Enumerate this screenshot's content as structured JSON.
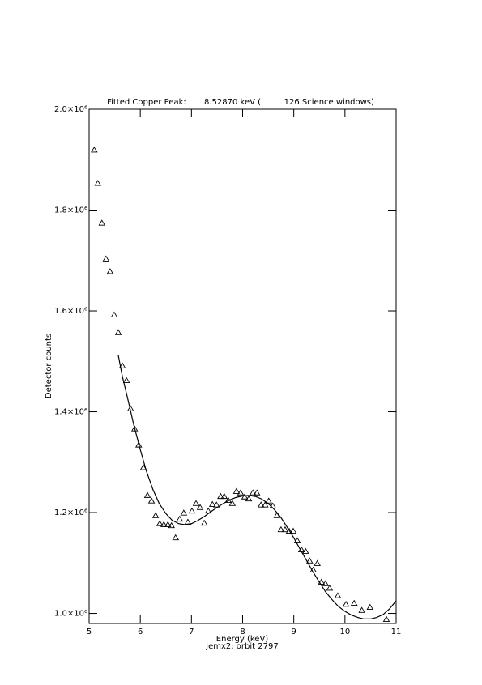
{
  "chart_data": {
    "type": "scatter",
    "title": "Fitted Copper Peak:       8.52870 keV (         126 Science windows)",
    "x_label": "Energy (keV)",
    "subtitle": "jemx2: orbit 2797",
    "y_label": "Detector counts",
    "xlim": [
      5,
      11
    ],
    "xticks": [
      5,
      6,
      7,
      8,
      9,
      10,
      11
    ],
    "ylim": [
      980000,
      2000000
    ],
    "yticks": [
      {
        "value": 1000000,
        "label": "1.0×10⁶"
      },
      {
        "value": 1200000,
        "label": "1.2×10⁶"
      },
      {
        "value": 1400000,
        "label": "1.4×10⁶"
      },
      {
        "value": 1600000,
        "label": "1.6×10⁶"
      },
      {
        "value": 1800000,
        "label": "1.8×10⁶"
      },
      {
        "value": 2000000,
        "label": "2.0×10⁶"
      }
    ],
    "series": [
      {
        "marker": "triangle",
        "color": "#000000",
        "x": [
          5.1,
          5.17,
          5.25,
          5.33,
          5.41,
          5.49,
          5.57,
          5.65,
          5.73,
          5.81,
          5.89,
          5.97,
          6.06,
          6.14,
          6.22,
          6.3,
          6.38,
          6.46,
          6.54,
          6.61,
          6.69,
          6.77,
          6.85,
          6.93,
          7.01,
          7.09,
          7.17,
          7.25,
          7.33,
          7.41,
          7.49,
          7.57,
          7.64,
          7.72,
          7.8,
          7.88,
          7.96,
          8.04,
          8.12,
          8.2,
          8.28,
          8.36,
          8.44,
          8.51,
          8.59,
          8.67,
          8.75,
          8.83,
          8.91,
          8.99,
          9.07,
          9.15,
          9.23,
          9.31,
          9.38,
          9.46,
          9.54,
          9.62,
          9.7,
          9.86,
          10.02,
          10.18,
          10.33,
          10.49,
          10.81
        ],
        "values": [
          1919000,
          1853000,
          1774000,
          1703000,
          1678000,
          1592000,
          1557000,
          1491000,
          1462000,
          1406000,
          1366000,
          1334000,
          1289000,
          1234000,
          1223000,
          1194000,
          1178000,
          1176000,
          1176000,
          1174000,
          1150000,
          1187000,
          1199000,
          1181000,
          1203000,
          1218000,
          1210000,
          1179000,
          1203000,
          1216000,
          1215000,
          1232000,
          1232000,
          1224000,
          1218000,
          1242000,
          1239000,
          1231000,
          1227000,
          1239000,
          1239000,
          1215000,
          1215000,
          1223000,
          1213000,
          1194000,
          1166000,
          1166000,
          1163000,
          1163000,
          1144000,
          1126000,
          1123000,
          1104000,
          1086000,
          1099000,
          1062000,
          1059000,
          1050000,
          1035000,
          1018000,
          1020000,
          1006000,
          1012000,
          988000
        ]
      },
      {
        "marker": "line",
        "color": "#000000",
        "x": [
          5.57,
          5.65,
          5.75,
          5.87,
          6.0,
          6.12,
          6.25,
          6.37,
          6.5,
          6.62,
          6.75,
          6.87,
          7.0,
          7.12,
          7.25,
          7.37,
          7.5,
          7.62,
          7.75,
          7.87,
          8.0,
          8.12,
          8.25,
          8.37,
          8.5,
          8.62,
          8.75,
          8.87,
          9.0,
          9.12,
          9.25,
          9.37,
          9.5,
          9.62,
          9.75,
          9.87,
          10.0,
          10.12,
          10.25,
          10.37,
          10.5,
          10.62,
          10.75,
          10.87,
          11.0
        ],
        "values": [
          1512000,
          1470000,
          1428000,
          1375000,
          1325000,
          1282000,
          1245000,
          1218000,
          1198000,
          1185000,
          1178000,
          1176000,
          1178000,
          1184000,
          1192000,
          1201000,
          1210000,
          1218000,
          1225000,
          1230000,
          1233000,
          1234000,
          1232000,
          1227000,
          1218000,
          1206000,
          1190000,
          1171000,
          1150000,
          1128000,
          1105000,
          1083000,
          1062000,
          1043000,
          1027000,
          1014000,
          1004000,
          997000,
          992000,
          989000,
          989000,
          992000,
          998000,
          1009000,
          1025000
        ]
      }
    ]
  }
}
